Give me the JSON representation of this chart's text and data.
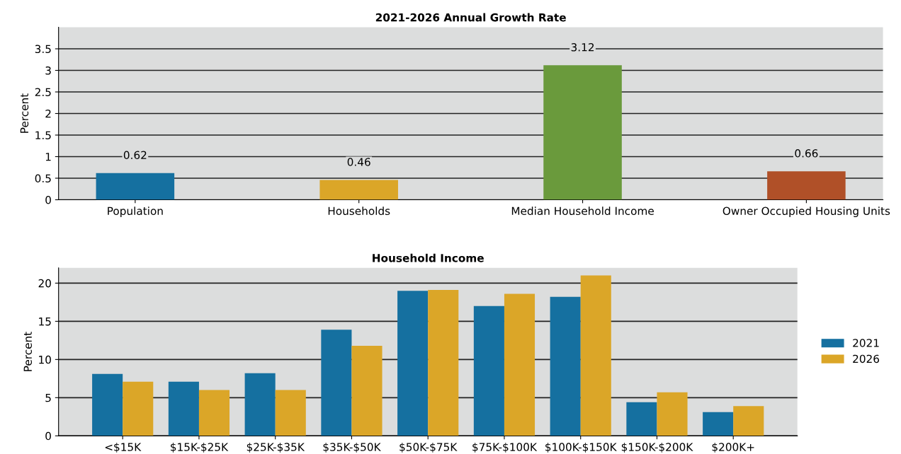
{
  "chart_data": [
    {
      "type": "bar",
      "title": "2021-2026 Annual Growth Rate",
      "ylabel": "Percent",
      "categories": [
        "Population",
        "Households",
        "Median Household Income",
        "Owner Occupied Housing Units"
      ],
      "values": [
        0.62,
        0.46,
        3.12,
        0.66
      ],
      "colors": [
        "#1570a0",
        "#dba628",
        "#6a9a3c",
        "#b05028"
      ],
      "data_labels": true,
      "ylim": [
        0,
        4
      ],
      "yticks": [
        0,
        0.5,
        1,
        1.5,
        2,
        2.5,
        3,
        3.5
      ],
      "grid": "y",
      "legend": false
    },
    {
      "type": "bar",
      "title": "Household Income",
      "ylabel": "Percent",
      "categories": [
        "<$15K",
        "$15K-$25K",
        "$25K-$35K",
        "$35K-$50K",
        "$50K-$75K",
        "$75K-$100K",
        "$100K-$150K",
        "$150K-$200K",
        "$200K+"
      ],
      "series": [
        {
          "name": "2021",
          "color": "#1570a0",
          "values": [
            8.1,
            7.1,
            8.2,
            13.9,
            19.0,
            17.0,
            18.2,
            4.4,
            3.1
          ]
        },
        {
          "name": "2026",
          "color": "#dba628",
          "values": [
            7.1,
            6.0,
            6.0,
            11.8,
            19.1,
            18.6,
            21.0,
            5.7,
            3.9
          ]
        }
      ],
      "ylim": [
        0,
        22
      ],
      "yticks": [
        0,
        5,
        10,
        15,
        20
      ],
      "grid": "y",
      "legend": "right"
    }
  ]
}
